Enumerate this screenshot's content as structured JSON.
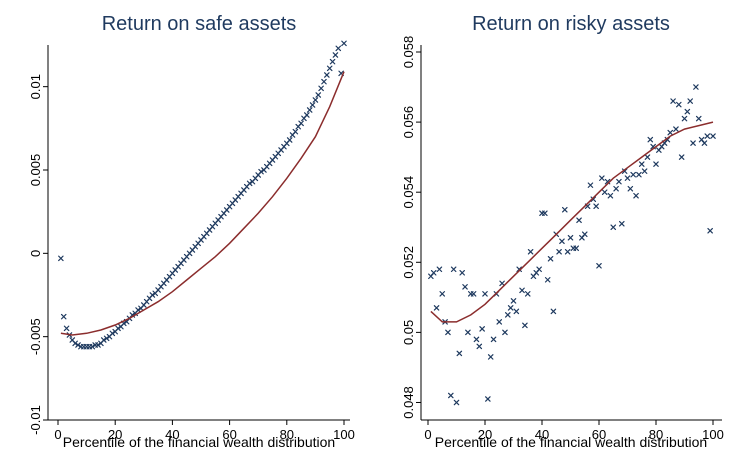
{
  "figure": {
    "colors": {
      "markers": "#1f3a5f",
      "fit_line": "#8b2d2d",
      "title": "#1f3a5f",
      "background": "#ffffff"
    }
  },
  "chart_data": [
    {
      "type": "scatter",
      "title": "Return on safe assets",
      "xlabel": "Percentile of the financial wealth distribution",
      "ylabel": "",
      "xlim": [
        0,
        100
      ],
      "ylim": [
        -0.01,
        0.0125
      ],
      "xticks": [
        0,
        20,
        40,
        60,
        80,
        100
      ],
      "yticks": [
        -0.01,
        -0.005,
        0,
        0.005,
        0.01
      ],
      "xtick_labels": [
        "0",
        "20",
        "40",
        "60",
        "80",
        "100"
      ],
      "ytick_labels": [
        "-0.01",
        "-0.005",
        "0",
        "0.005",
        "0.01"
      ],
      "series": [
        {
          "kind": "markers",
          "marker": "x",
          "x": [
            1,
            2,
            3,
            4,
            5,
            6,
            7,
            8,
            9,
            10,
            11,
            12,
            13,
            14,
            15,
            16,
            17,
            18,
            19,
            20,
            21,
            22,
            23,
            24,
            25,
            26,
            27,
            28,
            29,
            30,
            31,
            32,
            33,
            34,
            35,
            36,
            37,
            38,
            39,
            40,
            41,
            42,
            43,
            44,
            45,
            46,
            47,
            48,
            49,
            50,
            51,
            52,
            53,
            54,
            55,
            56,
            57,
            58,
            59,
            60,
            61,
            62,
            63,
            64,
            65,
            66,
            67,
            68,
            69,
            70,
            71,
            72,
            73,
            74,
            75,
            76,
            77,
            78,
            79,
            80,
            81,
            82,
            83,
            84,
            85,
            86,
            87,
            88,
            89,
            90,
            91,
            92,
            93,
            94,
            95,
            96,
            97,
            98,
            99,
            100
          ],
          "y": [
            -0.0003,
            -0.0038,
            -0.0045,
            -0.0049,
            -0.0052,
            -0.0054,
            -0.0055,
            -0.0056,
            -0.0056,
            -0.0056,
            -0.0056,
            -0.0056,
            -0.0055,
            -0.0055,
            -0.0054,
            -0.0052,
            -0.0051,
            -0.005,
            -0.0048,
            -0.0047,
            -0.0045,
            -0.0044,
            -0.0042,
            -0.0041,
            -0.0039,
            -0.0037,
            -0.0036,
            -0.0034,
            -0.0033,
            -0.0031,
            -0.0029,
            -0.0027,
            -0.0025,
            -0.0024,
            -0.0022,
            -0.002,
            -0.0018,
            -0.0016,
            -0.0014,
            -0.0012,
            -0.001,
            -0.0008,
            -0.0006,
            -0.0004,
            -0.0002,
            0.0,
            0.0002,
            0.0004,
            0.0006,
            0.0008,
            0.001,
            0.0012,
            0.0014,
            0.0016,
            0.0018,
            0.002,
            0.0022,
            0.0024,
            0.0026,
            0.0028,
            0.003,
            0.0032,
            0.0034,
            0.0036,
            0.0038,
            0.004,
            0.0042,
            0.0043,
            0.0045,
            0.0047,
            0.0049,
            0.005,
            0.0052,
            0.0054,
            0.0056,
            0.0058,
            0.006,
            0.0062,
            0.0064,
            0.0066,
            0.0068,
            0.0071,
            0.0073,
            0.0076,
            0.0078,
            0.0081,
            0.0083,
            0.0086,
            0.0089,
            0.0092,
            0.0095,
            0.0099,
            0.0103,
            0.0107,
            0.0111,
            0.0115,
            0.0119,
            0.0123,
            0.0108,
            0.0126
          ]
        },
        {
          "kind": "fit_line",
          "x": [
            1,
            5,
            10,
            15,
            20,
            25,
            30,
            35,
            40,
            45,
            50,
            55,
            60,
            65,
            70,
            75,
            80,
            85,
            90,
            95,
            100
          ],
          "y": [
            -0.0048,
            -0.0049,
            -0.0048,
            -0.0046,
            -0.0043,
            -0.0039,
            -0.0034,
            -0.0029,
            -0.0023,
            -0.0016,
            -0.0009,
            -0.0002,
            0.0006,
            0.0015,
            0.0024,
            0.0034,
            0.0045,
            0.0057,
            0.007,
            0.0088,
            0.0109
          ]
        }
      ]
    },
    {
      "type": "scatter",
      "title": "Return on risky assets",
      "xlabel": "Percentile of the financial wealth distribution",
      "ylabel": "",
      "xlim": [
        0,
        100
      ],
      "ylim": [
        0.0475,
        0.0582
      ],
      "xticks": [
        0,
        20,
        40,
        60,
        80,
        100
      ],
      "yticks": [
        0.048,
        0.05,
        0.052,
        0.054,
        0.056,
        0.058
      ],
      "xtick_labels": [
        "0",
        "20",
        "40",
        "60",
        "80",
        "100"
      ],
      "ytick_labels": [
        "0.048",
        "0.05",
        "0.052",
        "0.054",
        "0.056",
        "0.058"
      ],
      "series": [
        {
          "kind": "markers",
          "marker": "x",
          "x": [
            1,
            2,
            3,
            4,
            5,
            6,
            7,
            8,
            9,
            10,
            11,
            12,
            13,
            14,
            15,
            16,
            17,
            18,
            19,
            20,
            21,
            22,
            23,
            24,
            25,
            26,
            27,
            28,
            29,
            30,
            31,
            32,
            33,
            34,
            35,
            36,
            37,
            38,
            39,
            40,
            41,
            42,
            43,
            44,
            45,
            46,
            47,
            48,
            49,
            50,
            51,
            52,
            53,
            54,
            55,
            56,
            57,
            58,
            59,
            60,
            61,
            62,
            63,
            64,
            65,
            66,
            67,
            68,
            69,
            70,
            71,
            72,
            73,
            74,
            75,
            76,
            77,
            78,
            79,
            80,
            81,
            82,
            83,
            84,
            85,
            86,
            87,
            88,
            89,
            90,
            91,
            92,
            93,
            94,
            95,
            96,
            97,
            98,
            99,
            100
          ],
          "y": [
            0.0516,
            0.0517,
            0.0507,
            0.0518,
            0.0511,
            0.0503,
            0.05,
            0.0482,
            0.0518,
            0.048,
            0.0494,
            0.0517,
            0.0513,
            0.05,
            0.0511,
            0.0511,
            0.0498,
            0.0496,
            0.0501,
            0.0511,
            0.0481,
            0.0493,
            0.0498,
            0.0511,
            0.0503,
            0.0514,
            0.05,
            0.0505,
            0.0507,
            0.0509,
            0.0506,
            0.0518,
            0.0512,
            0.0502,
            0.0511,
            0.0523,
            0.0516,
            0.0517,
            0.0518,
            0.0534,
            0.0534,
            0.0515,
            0.0521,
            0.0506,
            0.0528,
            0.0523,
            0.0526,
            0.0535,
            0.0523,
            0.0527,
            0.0524,
            0.0524,
            0.0532,
            0.0527,
            0.0528,
            0.0536,
            0.0542,
            0.0538,
            0.0536,
            0.0519,
            0.0544,
            0.054,
            0.0543,
            0.0539,
            0.053,
            0.0541,
            0.0543,
            0.0531,
            0.0546,
            0.0544,
            0.0541,
            0.0545,
            0.0539,
            0.0545,
            0.0548,
            0.0546,
            0.055,
            0.0555,
            0.0553,
            0.0548,
            0.0552,
            0.0553,
            0.0554,
            0.0555,
            0.0557,
            0.0566,
            0.0558,
            0.0565,
            0.055,
            0.0561,
            0.0563,
            0.0566,
            0.0554,
            0.057,
            0.0561,
            0.0555,
            0.0554,
            0.0556,
            0.0529,
            0.0556
          ],
          "extra_points": []
        },
        {
          "kind": "fit_line",
          "x": [
            1,
            5,
            10,
            15,
            20,
            25,
            30,
            35,
            40,
            45,
            50,
            55,
            60,
            65,
            70,
            75,
            80,
            85,
            90,
            95,
            100
          ],
          "y": [
            0.0506,
            0.0503,
            0.0503,
            0.0505,
            0.0508,
            0.0512,
            0.0516,
            0.052,
            0.0524,
            0.0528,
            0.0532,
            0.0536,
            0.054,
            0.0544,
            0.0547,
            0.055,
            0.0553,
            0.0556,
            0.0558,
            0.0559,
            0.056
          ]
        }
      ]
    }
  ]
}
